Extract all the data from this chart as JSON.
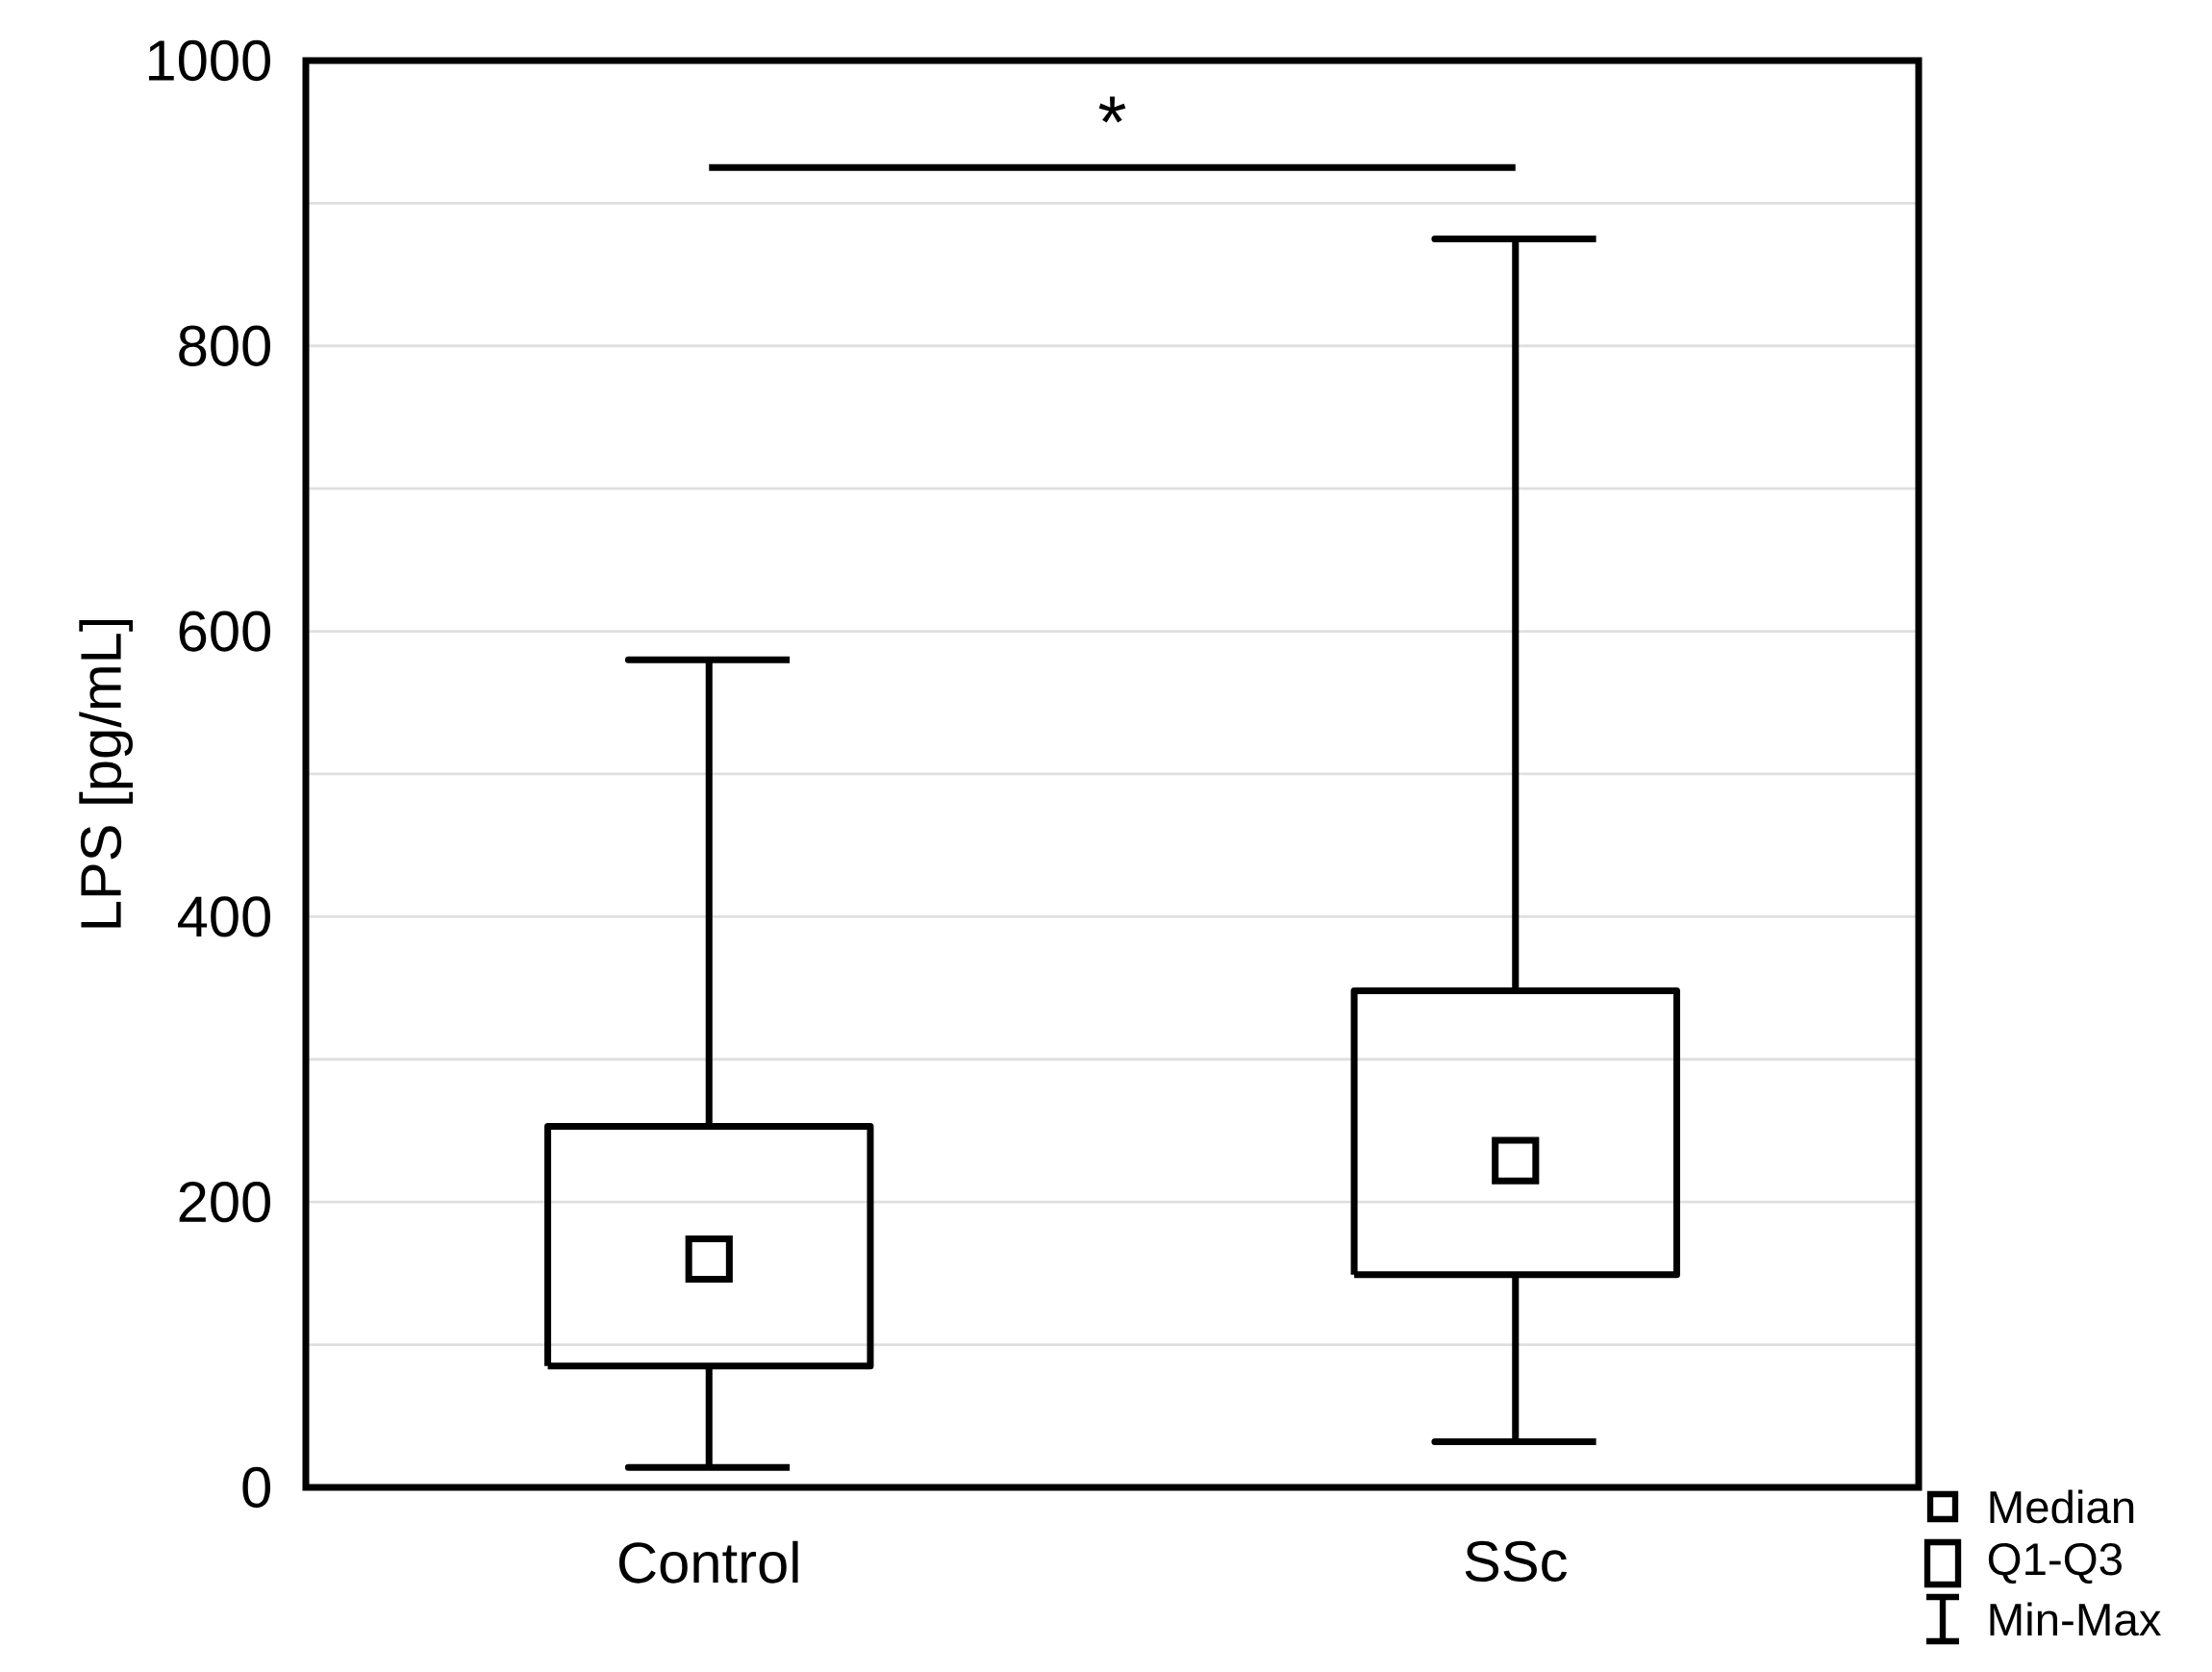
{
  "chart_data": {
    "type": "box",
    "ylabel": "LPS [pg/mL]",
    "categories": [
      "Control",
      "SSc"
    ],
    "boxes": [
      {
        "low": 14,
        "q1": 85,
        "median": 160,
        "q3": 253,
        "high": 580
      },
      {
        "low": 32,
        "q1": 149,
        "median": 229,
        "q3": 348,
        "high": 875
      }
    ],
    "ylim": [
      0,
      1000
    ],
    "yticks": [
      0,
      {
        "value": 100,
        "label": null
      },
      200,
      {
        "value": 300,
        "label": null
      },
      400,
      {
        "value": 500,
        "label": null
      },
      600,
      {
        "value": 700,
        "label": null
      },
      800,
      {
        "value": 900,
        "label": null
      },
      1000
    ],
    "grid": "y",
    "marker": "square",
    "annotations": [
      "*",
      "Median",
      "Q1-Q3",
      "Min-Max"
    ]
  }
}
